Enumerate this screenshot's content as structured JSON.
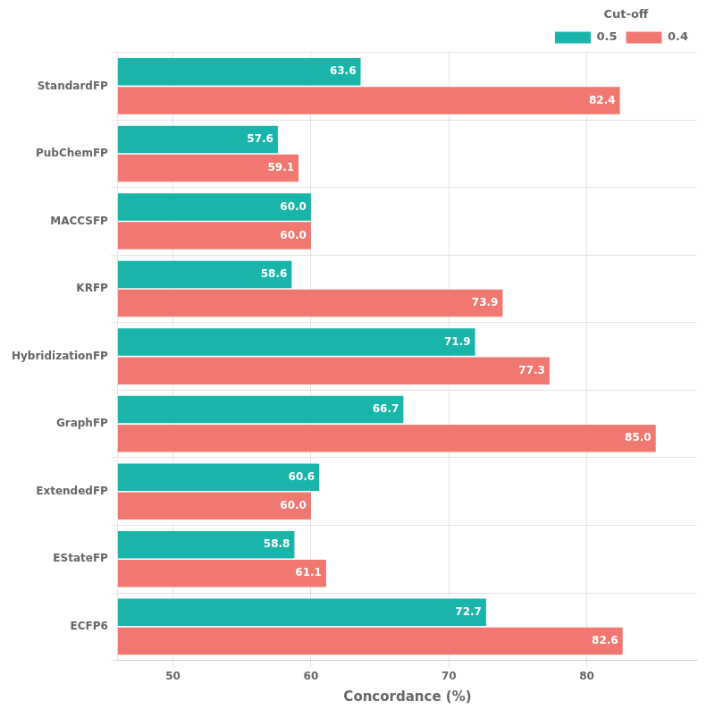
{
  "chart_data": {
    "type": "bar",
    "orientation": "horizontal",
    "xlabel": "Concordance (%)",
    "legend_title": "Cut-off",
    "legend": "upper right",
    "grid": true,
    "data_labels": true,
    "categories": [
      "StandardFP",
      "PubChemFP",
      "MACCSFP",
      "KRFP",
      "HybridizationFP",
      "GraphFP",
      "ExtendedFP",
      "EStateFP",
      "ECFP6"
    ],
    "series": [
      {
        "name": "0.4",
        "color": "#F07870",
        "values": [
          82.4,
          59.1,
          60.0,
          73.9,
          77.3,
          85.0,
          60.0,
          61.1,
          82.6
        ],
        "value_labels": [
          "82.4",
          "59.1",
          "60.0",
          "73.9",
          "77.3",
          "85.0",
          "60.0",
          "61.1",
          "82.6"
        ]
      },
      {
        "name": "0.5",
        "color": "#19B5AA",
        "values": [
          63.6,
          57.6,
          60.0,
          58.6,
          71.9,
          66.7,
          60.6,
          58.8,
          72.7
        ],
        "value_labels": [
          "63.6",
          "57.6",
          "60.0",
          "58.6",
          "71.9",
          "66.7",
          "60.6",
          "58.8",
          "72.7"
        ]
      }
    ],
    "xlim": [
      46,
      88
    ],
    "xticks": [
      50,
      60,
      70,
      80
    ]
  }
}
